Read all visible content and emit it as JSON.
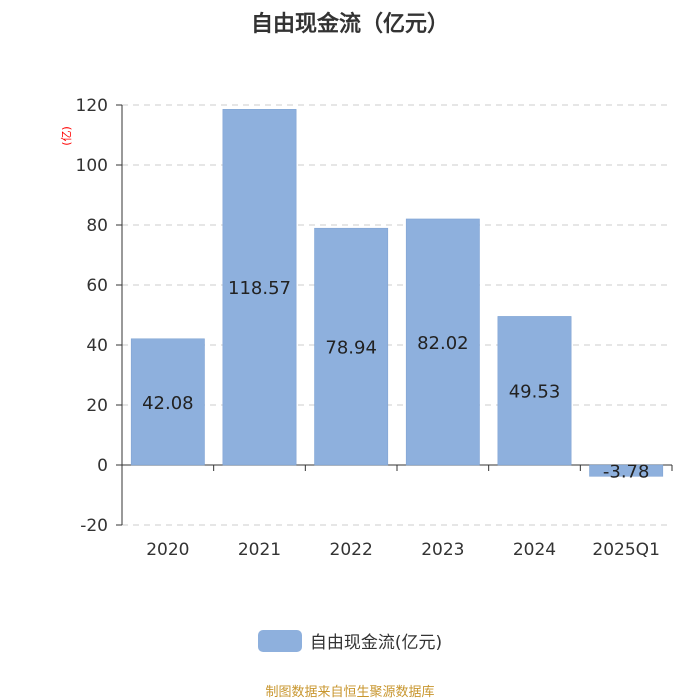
{
  "chart_data": {
    "type": "bar",
    "title": "自由现金流（亿元）",
    "ylabel": "(亿)",
    "categories": [
      "2020",
      "2021",
      "2022",
      "2023",
      "2024",
      "2025Q1"
    ],
    "series": [
      {
        "name": "自由现金流(亿元)",
        "values": [
          42.08,
          118.57,
          78.94,
          82.02,
          49.53,
          -3.78
        ]
      }
    ],
    "value_labels": [
      "42.08",
      "118.57",
      "78.94",
      "82.02",
      "49.53",
      "-3.78"
    ],
    "yticks": [
      "120",
      "100",
      "80",
      "60",
      "40",
      "20",
      "0",
      "-20"
    ],
    "ylim": [
      -20,
      120
    ],
    "grid": true,
    "legend_position": "bottom-center",
    "bar_color": "#8eb0dd",
    "ylabel_color": "#ff0000"
  },
  "source_note": "制图数据来自恒生聚源数据库"
}
